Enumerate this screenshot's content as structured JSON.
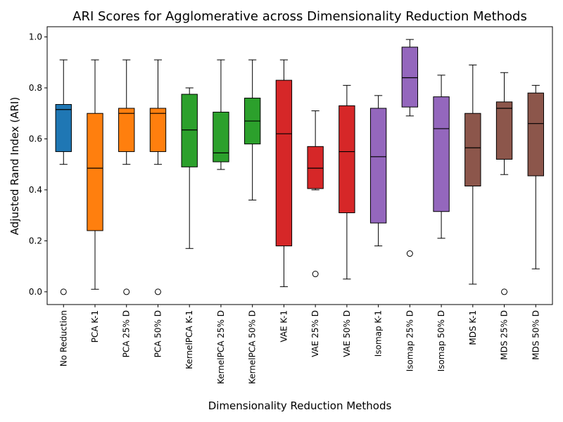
{
  "chart_data": {
    "type": "box",
    "title": "ARI Scores for Agglomerative across Dimensionality Reduction Methods",
    "xlabel": "Dimensionality Reduction Methods",
    "ylabel": "Adjusted Rand Index (ARI)",
    "ylim": [
      -0.05,
      1.04
    ],
    "yticks": [
      0.0,
      0.2,
      0.4,
      0.6,
      0.8,
      1.0
    ],
    "ytick_labels": [
      "0.0",
      "0.2",
      "0.4",
      "0.6",
      "0.8",
      "1.0"
    ],
    "grid": false,
    "categories": [
      "No Reduction",
      "PCA K-1",
      "PCA 25% D",
      "PCA 50% D",
      "KernelPCA K-1",
      "KernelPCA 25% D",
      "KernelPCA 50% D",
      "VAE K-1",
      "VAE 25% D",
      "VAE 50% D",
      "Isomap K-1",
      "Isomap 25% D",
      "Isomap 50% D",
      "MDS K-1",
      "MDS 25% D",
      "MDS 50% D"
    ],
    "boxes": [
      {
        "whisker_low": 0.5,
        "q1": 0.55,
        "median": 0.715,
        "q3": 0.735,
        "whisker_high": 0.91,
        "outliers": [
          0.0
        ],
        "color": "#1f77b4"
      },
      {
        "whisker_low": 0.01,
        "q1": 0.24,
        "median": 0.485,
        "q3": 0.7,
        "whisker_high": 0.91,
        "outliers": [],
        "color": "#ff7f0e"
      },
      {
        "whisker_low": 0.5,
        "q1": 0.55,
        "median": 0.7,
        "q3": 0.72,
        "whisker_high": 0.91,
        "outliers": [
          0.0
        ],
        "color": "#ff7f0e"
      },
      {
        "whisker_low": 0.5,
        "q1": 0.55,
        "median": 0.7,
        "q3": 0.72,
        "whisker_high": 0.91,
        "outliers": [
          0.0
        ],
        "color": "#ff7f0e"
      },
      {
        "whisker_low": 0.17,
        "q1": 0.49,
        "median": 0.635,
        "q3": 0.775,
        "whisker_high": 0.8,
        "outliers": [],
        "color": "#2ca02c"
      },
      {
        "whisker_low": 0.48,
        "q1": 0.51,
        "median": 0.545,
        "q3": 0.705,
        "whisker_high": 0.91,
        "outliers": [],
        "color": "#2ca02c"
      },
      {
        "whisker_low": 0.36,
        "q1": 0.58,
        "median": 0.67,
        "q3": 0.76,
        "whisker_high": 0.91,
        "outliers": [],
        "color": "#2ca02c"
      },
      {
        "whisker_low": 0.02,
        "q1": 0.18,
        "median": 0.62,
        "q3": 0.83,
        "whisker_high": 0.91,
        "outliers": [],
        "color": "#d62728"
      },
      {
        "whisker_low": 0.4,
        "q1": 0.405,
        "median": 0.485,
        "q3": 0.57,
        "whisker_high": 0.71,
        "outliers": [
          0.07
        ],
        "color": "#d62728"
      },
      {
        "whisker_low": 0.05,
        "q1": 0.31,
        "median": 0.55,
        "q3": 0.73,
        "whisker_high": 0.81,
        "outliers": [],
        "color": "#d62728"
      },
      {
        "whisker_low": 0.18,
        "q1": 0.27,
        "median": 0.53,
        "q3": 0.72,
        "whisker_high": 0.77,
        "outliers": [],
        "color": "#9467bd"
      },
      {
        "whisker_low": 0.69,
        "q1": 0.725,
        "median": 0.84,
        "q3": 0.96,
        "whisker_high": 0.99,
        "outliers": [
          0.15
        ],
        "color": "#9467bd"
      },
      {
        "whisker_low": 0.21,
        "q1": 0.315,
        "median": 0.64,
        "q3": 0.765,
        "whisker_high": 0.85,
        "outliers": [],
        "color": "#9467bd"
      },
      {
        "whisker_low": 0.03,
        "q1": 0.415,
        "median": 0.565,
        "q3": 0.7,
        "whisker_high": 0.89,
        "outliers": [],
        "color": "#8c564b"
      },
      {
        "whisker_low": 0.46,
        "q1": 0.52,
        "median": 0.72,
        "q3": 0.745,
        "whisker_high": 0.86,
        "outliers": [
          0.0
        ],
        "color": "#8c564b"
      },
      {
        "whisker_low": 0.09,
        "q1": 0.455,
        "median": 0.66,
        "q3": 0.78,
        "whisker_high": 0.81,
        "outliers": [],
        "color": "#8c564b"
      }
    ]
  }
}
